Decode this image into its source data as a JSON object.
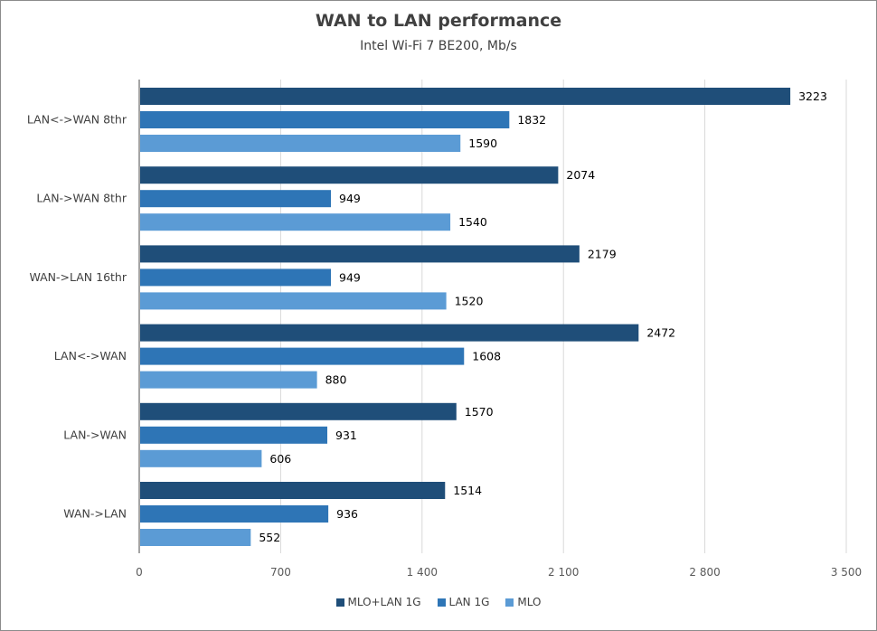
{
  "chart_data": {
    "type": "bar",
    "orientation": "horizontal",
    "title": "WAN to LAN performance",
    "subtitle": "Intel Wi-Fi 7 BE200, Mb/s",
    "xlabel": "",
    "ylabel": "",
    "xlim": [
      0,
      3500
    ],
    "x_ticks": [
      0,
      700,
      1400,
      2100,
      2800,
      3500
    ],
    "x_tick_labels": [
      "0",
      "700",
      "1 400",
      "2 100",
      "2 800",
      "3 500"
    ],
    "grid": true,
    "legend_position": "bottom",
    "categories": [
      "LAN<->WAN 8thr",
      "LAN->WAN 8thr",
      "WAN->LAN 16thr",
      "LAN<->WAN",
      "LAN->WAN",
      "WAN->LAN"
    ],
    "series": [
      {
        "name": "MLO+LAN 1G",
        "color": "#1f4e79",
        "values": [
          3223,
          2074,
          2179,
          2472,
          1570,
          1514
        ]
      },
      {
        "name": "LAN 1G",
        "color": "#2e75b6",
        "values": [
          1832,
          949,
          949,
          1608,
          931,
          936
        ]
      },
      {
        "name": "MLO",
        "color": "#5b9bd5",
        "values": [
          1590,
          1540,
          1520,
          880,
          606,
          552
        ]
      }
    ]
  }
}
